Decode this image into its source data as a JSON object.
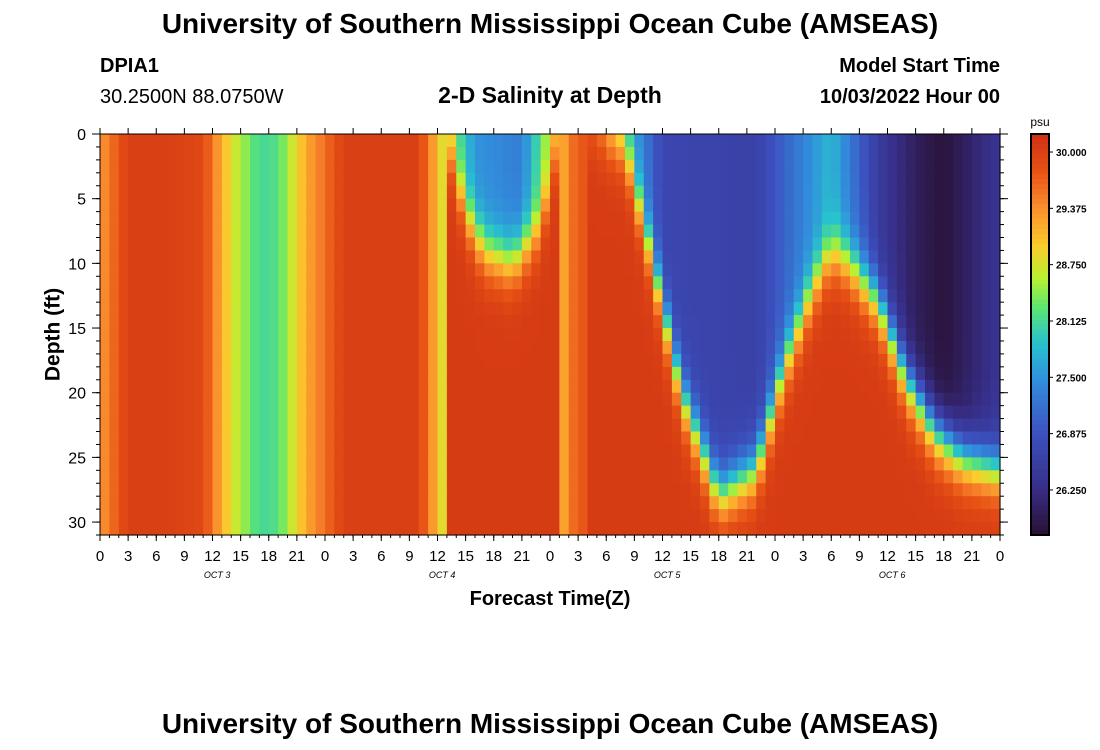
{
  "header": {
    "title": "University of Southern Mississippi Ocean Cube (AMSEAS)",
    "station_id": "DPIA1",
    "coordinates": "30.2500N  88.0750W",
    "plot_title": "2-D Salinity at Depth",
    "model_start_label": "Model Start Time",
    "model_start_value": "10/03/2022 Hour 00"
  },
  "footer": {
    "title": "University of Southern Mississippi Ocean Cube (AMSEAS)"
  },
  "chart_data": {
    "type": "heatmap",
    "title": "2-D Salinity at Depth",
    "xlabel": "Forecast Time(Z)",
    "ylabel": "Depth (ft)",
    "x_range_hours": [
      0,
      96
    ],
    "x_tick_labels": [
      "0",
      "3",
      "6",
      "9",
      "12",
      "15",
      "18",
      "21",
      "0",
      "3",
      "6",
      "9",
      "12",
      "15",
      "18",
      "21",
      "0",
      "3",
      "6",
      "9",
      "12",
      "15",
      "18",
      "21",
      "0",
      "3",
      "6",
      "9",
      "12",
      "15",
      "18",
      "21",
      "0"
    ],
    "day_labels": [
      "OCT 3",
      "OCT 4",
      "OCT 5",
      "OCT 6"
    ],
    "ylim": [
      0,
      31
    ],
    "y_tick_labels": [
      "0",
      "5",
      "10",
      "15",
      "20",
      "25",
      "30"
    ],
    "y_tick_values": [
      0,
      5,
      10,
      15,
      20,
      25,
      30
    ],
    "colorbar": {
      "units": "psu",
      "min": 25.75,
      "max": 30.2,
      "tick_values": [
        30.0,
        29.375,
        28.75,
        28.125,
        27.5,
        26.875,
        26.25
      ],
      "tick_labels": [
        "30.000",
        "29.375",
        "28.750",
        "28.125",
        "27.500",
        "26.875",
        "26.250"
      ]
    },
    "surface_salinity_psu": [
      {
        "hour": 0,
        "psu": 29.3
      },
      {
        "hour": 3,
        "psu": 30.0
      },
      {
        "hour": 7,
        "psu": 30.0
      },
      {
        "hour": 11,
        "psu": 29.9
      },
      {
        "hour": 14,
        "psu": 28.8
      },
      {
        "hour": 17,
        "psu": 28.1
      },
      {
        "hour": 19,
        "psu": 28.2
      },
      {
        "hour": 22,
        "psu": 29.2
      },
      {
        "hour": 26,
        "psu": 30.0
      },
      {
        "hour": 34,
        "psu": 30.0
      },
      {
        "hour": 37,
        "psu": 28.6
      },
      {
        "hour": 40,
        "psu": 27.5
      },
      {
        "hour": 45,
        "psu": 27.3
      },
      {
        "hour": 48,
        "psu": 28.7
      },
      {
        "hour": 51,
        "psu": 29.8
      },
      {
        "hour": 53,
        "psu": 29.6
      },
      {
        "hour": 56,
        "psu": 27.9
      },
      {
        "hour": 60,
        "psu": 26.7
      },
      {
        "hour": 70,
        "psu": 26.6
      },
      {
        "hour": 78,
        "psu": 27.8
      },
      {
        "hour": 83,
        "psu": 26.5
      },
      {
        "hour": 87,
        "psu": 26.0
      },
      {
        "hour": 90,
        "psu": 25.8
      },
      {
        "hour": 96,
        "psu": 26.4
      }
    ],
    "halocline_depth_ft": [
      {
        "hour": 0,
        "depth": 0
      },
      {
        "hour": 37,
        "depth": 0
      },
      {
        "hour": 39,
        "depth": 6
      },
      {
        "hour": 41,
        "depth": 9
      },
      {
        "hour": 44,
        "depth": 10
      },
      {
        "hour": 47,
        "depth": 7
      },
      {
        "hour": 49,
        "depth": 0
      },
      {
        "hour": 56,
        "depth": 1
      },
      {
        "hour": 59,
        "depth": 10
      },
      {
        "hour": 62,
        "depth": 20
      },
      {
        "hour": 66,
        "depth": 28
      },
      {
        "hour": 70,
        "depth": 26
      },
      {
        "hour": 73,
        "depth": 18
      },
      {
        "hour": 76,
        "depth": 12
      },
      {
        "hour": 78,
        "depth": 9
      },
      {
        "hour": 80,
        "depth": 10
      },
      {
        "hour": 83,
        "depth": 13
      },
      {
        "hour": 86,
        "depth": 19
      },
      {
        "hour": 89,
        "depth": 23
      },
      {
        "hour": 92,
        "depth": 25
      },
      {
        "hour": 96,
        "depth": 26
      }
    ],
    "deep_salinity_psu": 30.05
  }
}
